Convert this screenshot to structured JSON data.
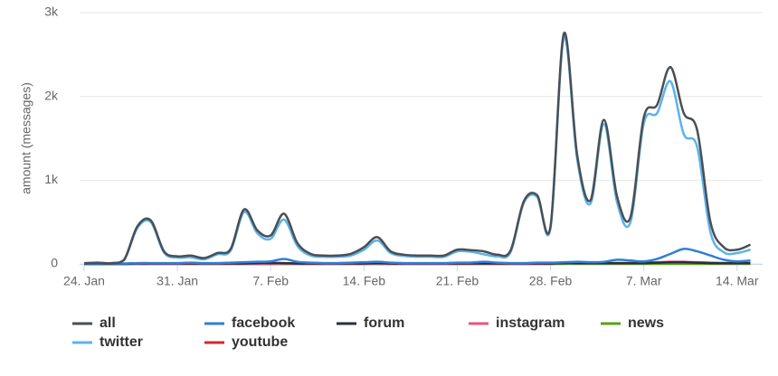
{
  "chart_data": {
    "type": "line",
    "y_label": "amount (messages)",
    "categories": [
      "24. Jan",
      null,
      null,
      null,
      null,
      null,
      null,
      "31. Jan",
      null,
      null,
      null,
      null,
      null,
      null,
      "7. Feb",
      null,
      null,
      null,
      null,
      null,
      null,
      "14. Feb",
      null,
      null,
      null,
      null,
      null,
      null,
      "21. Feb",
      null,
      null,
      null,
      null,
      null,
      null,
      "28. Feb",
      null,
      null,
      null,
      null,
      null,
      null,
      "7. Mar",
      null,
      null,
      null,
      null,
      null,
      null,
      "14. Mar",
      null
    ],
    "ylim": [
      0,
      3000
    ],
    "yticks": [
      0,
      {
        "value": 1000,
        "label": "1k"
      },
      {
        "value": 2000,
        "label": "2k"
      },
      {
        "value": 3000,
        "label": "3k"
      }
    ],
    "grid": true,
    "series": [
      {
        "name": "all",
        "color": "#4a4f55",
        "values": [
          10,
          15,
          10,
          50,
          450,
          520,
          150,
          90,
          100,
          70,
          130,
          180,
          650,
          400,
          340,
          600,
          250,
          120,
          100,
          100,
          120,
          200,
          320,
          150,
          110,
          100,
          100,
          100,
          170,
          165,
          150,
          110,
          160,
          750,
          820,
          450,
          2750,
          1300,
          760,
          1720,
          800,
          560,
          1750,
          1900,
          2350,
          1800,
          1600,
          500,
          200,
          170,
          230
        ]
      },
      {
        "name": "facebook",
        "color": "#2f7ed8",
        "values": [
          5,
          5,
          5,
          5,
          10,
          10,
          10,
          10,
          15,
          10,
          10,
          15,
          20,
          25,
          30,
          60,
          25,
          15,
          10,
          10,
          15,
          20,
          25,
          15,
          10,
          10,
          10,
          10,
          15,
          15,
          25,
          15,
          10,
          10,
          15,
          15,
          20,
          25,
          20,
          25,
          50,
          40,
          30,
          60,
          120,
          180,
          150,
          100,
          50,
          30,
          40
        ]
      },
      {
        "name": "forum",
        "color": "#2b2d42",
        "values": [
          0,
          0,
          0,
          0,
          5,
          5,
          5,
          5,
          5,
          5,
          5,
          5,
          5,
          10,
          10,
          10,
          5,
          5,
          5,
          5,
          5,
          5,
          10,
          5,
          5,
          5,
          5,
          5,
          5,
          5,
          5,
          5,
          5,
          5,
          5,
          5,
          10,
          10,
          10,
          10,
          10,
          10,
          10,
          15,
          20,
          20,
          15,
          10,
          10,
          10,
          10
        ]
      },
      {
        "name": "instagram",
        "color": "#e05a7a",
        "values": [
          0,
          0,
          0,
          0,
          0,
          0,
          0,
          0,
          0,
          0,
          0,
          0,
          0,
          0,
          0,
          5,
          0,
          0,
          0,
          0,
          0,
          0,
          5,
          0,
          0,
          0,
          0,
          0,
          0,
          0,
          5,
          0,
          0,
          0,
          0,
          5,
          10,
          10,
          10,
          10,
          10,
          10,
          15,
          20,
          25,
          25,
          20,
          15,
          10,
          10,
          10
        ]
      },
      {
        "name": "news",
        "color": "#5a9e1a",
        "values": [
          0,
          0,
          0,
          0,
          0,
          0,
          0,
          0,
          0,
          0,
          0,
          0,
          0,
          0,
          0,
          0,
          0,
          0,
          0,
          0,
          0,
          0,
          0,
          0,
          0,
          0,
          0,
          0,
          0,
          0,
          0,
          0,
          0,
          0,
          0,
          0,
          0,
          0,
          0,
          0,
          0,
          0,
          0,
          0,
          0,
          0,
          0,
          0,
          0,
          0,
          0
        ]
      },
      {
        "name": "twitter",
        "color": "#5cb3ea",
        "values": [
          5,
          10,
          5,
          45,
          430,
          500,
          135,
          75,
          80,
          55,
          115,
          160,
          620,
          365,
          300,
          530,
          215,
          100,
          85,
          85,
          100,
          170,
          280,
          130,
          95,
          85,
          85,
          85,
          150,
          145,
          115,
          90,
          140,
          730,
          800,
          430,
          2700,
          1250,
          720,
          1670,
          730,
          500,
          1680,
          1800,
          2180,
          1550,
          1400,
          380,
          140,
          130,
          170
        ]
      },
      {
        "name": "youtube",
        "color": "#d7262c",
        "values": [
          0,
          0,
          0,
          0,
          0,
          0,
          0,
          0,
          0,
          0,
          0,
          0,
          0,
          0,
          0,
          0,
          0,
          0,
          0,
          0,
          0,
          0,
          0,
          0,
          0,
          0,
          0,
          0,
          0,
          0,
          0,
          0,
          0,
          0,
          0,
          0,
          5,
          5,
          5,
          5,
          5,
          5,
          10,
          15,
          20,
          20,
          15,
          10,
          5,
          5,
          5
        ]
      }
    ]
  }
}
